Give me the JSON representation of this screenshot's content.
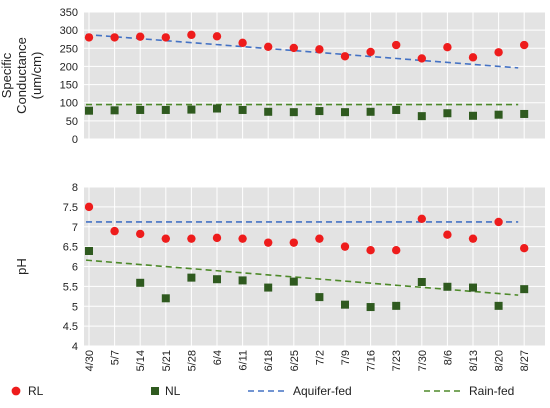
{
  "colors": {
    "rl": "#ee1c1c",
    "nl": "#2f5a1f",
    "aquifer": "#4472c4",
    "rain": "#4e8a2a",
    "plot_bg": "#e3e3e3",
    "grid": "#ffffff"
  },
  "chart_data": [
    {
      "type": "scatter",
      "ylabel": [
        "Specific",
        "Conductance",
        "(um/cm)"
      ],
      "ylim": [
        0,
        350
      ],
      "yticks": [
        "0",
        "50",
        "100",
        "150",
        "200",
        "250",
        "300",
        "350"
      ],
      "x": [
        "4/30",
        "5/7",
        "5/14",
        "5/21",
        "5/28",
        "6/4",
        "6/11",
        "6/18",
        "6/25",
        "7/2",
        "7/9",
        "7/16",
        "7/23",
        "7/30",
        "8/6",
        "8/13",
        "8/20",
        "8/27"
      ],
      "grid": true,
      "series": [
        {
          "name": "RL",
          "marker": "circle",
          "x": [
            "4/30",
            "5/7",
            "5/14",
            "5/21",
            "5/28",
            "6/4",
            "6/11",
            "6/18",
            "6/25",
            "7/2",
            "7/9",
            "7/16",
            "7/23",
            "7/30",
            "8/6",
            "8/13",
            "8/20",
            "8/27"
          ],
          "values": [
            280,
            280,
            282,
            280,
            287,
            283,
            265,
            254,
            251,
            247,
            228,
            240,
            259,
            222,
            253,
            225,
            239,
            259
          ]
        },
        {
          "name": "NL",
          "marker": "square",
          "x": [
            "4/30",
            "5/7",
            "5/14",
            "5/21",
            "5/28",
            "6/4",
            "6/11",
            "6/18",
            "6/25",
            "7/2",
            "7/9",
            "7/16",
            "7/23",
            "7/30",
            "8/6",
            "8/13",
            "8/20",
            "8/27"
          ],
          "values": [
            78,
            79,
            80,
            80,
            81,
            84,
            80,
            75,
            74,
            77,
            74,
            75,
            80,
            63,
            71,
            64,
            67,
            69
          ]
        },
        {
          "name": "Aquifer-fed",
          "line": "dashed",
          "values": [
            288,
            196
          ]
        },
        {
          "name": "Rain-fed",
          "line": "dashed",
          "values": [
            95,
            95
          ]
        }
      ]
    },
    {
      "type": "scatter",
      "ylabel": [
        "pH"
      ],
      "ylim": [
        4,
        8
      ],
      "yticks": [
        "4",
        "4.5",
        "5",
        "5.5",
        "6",
        "6.5",
        "7",
        "7.5",
        "8"
      ],
      "x": [
        "4/30",
        "5/7",
        "5/14",
        "5/21",
        "5/28",
        "6/4",
        "6/11",
        "6/18",
        "6/25",
        "7/2",
        "7/9",
        "7/16",
        "7/23",
        "7/30",
        "8/6",
        "8/13",
        "8/20",
        "8/27"
      ],
      "grid": true,
      "series": [
        {
          "name": "RL",
          "marker": "circle",
          "x": [
            "4/30",
            "5/7",
            "5/14",
            "5/21",
            "5/28",
            "6/4",
            "6/11",
            "6/18",
            "6/25",
            "7/2",
            "7/9",
            "7/16",
            "7/23",
            "7/30",
            "8/6",
            "8/13",
            "8/20",
            "8/27"
          ],
          "values": [
            7.5,
            6.89,
            6.82,
            6.7,
            6.7,
            6.72,
            6.7,
            6.6,
            6.6,
            6.7,
            6.5,
            6.41,
            6.41,
            7.2,
            6.8,
            6.7,
            7.12,
            6.46
          ]
        },
        {
          "name": "NL",
          "marker": "square",
          "x": [
            "4/30",
            "5/7",
            "5/14",
            "5/21",
            "5/28",
            "6/4",
            "6/11",
            "6/18",
            "6/25",
            "7/2",
            "7/9",
            "7/16",
            "7/23",
            "7/30",
            "8/6",
            "8/13",
            "8/20",
            "8/27"
          ],
          "values": [
            6.39,
            null,
            5.59,
            5.2,
            5.72,
            5.68,
            5.65,
            5.47,
            5.62,
            5.23,
            5.04,
            4.98,
            5.01,
            5.61,
            5.49,
            5.47,
            5.01,
            5.43
          ]
        },
        {
          "name": "Aquifer-fed",
          "line": "dashed",
          "values": [
            7.12,
            7.12
          ]
        },
        {
          "name": "Rain-fed",
          "line": "dashed",
          "values": [
            6.16,
            5.28
          ]
        }
      ]
    }
  ],
  "legend": {
    "position": "bottom",
    "items": [
      {
        "label": "RL",
        "kind": "circle"
      },
      {
        "label": "NL",
        "kind": "square"
      },
      {
        "label": "Aquifer-fed",
        "kind": "dash-aquifer"
      },
      {
        "label": "Rain-fed",
        "kind": "dash-rain"
      }
    ]
  }
}
